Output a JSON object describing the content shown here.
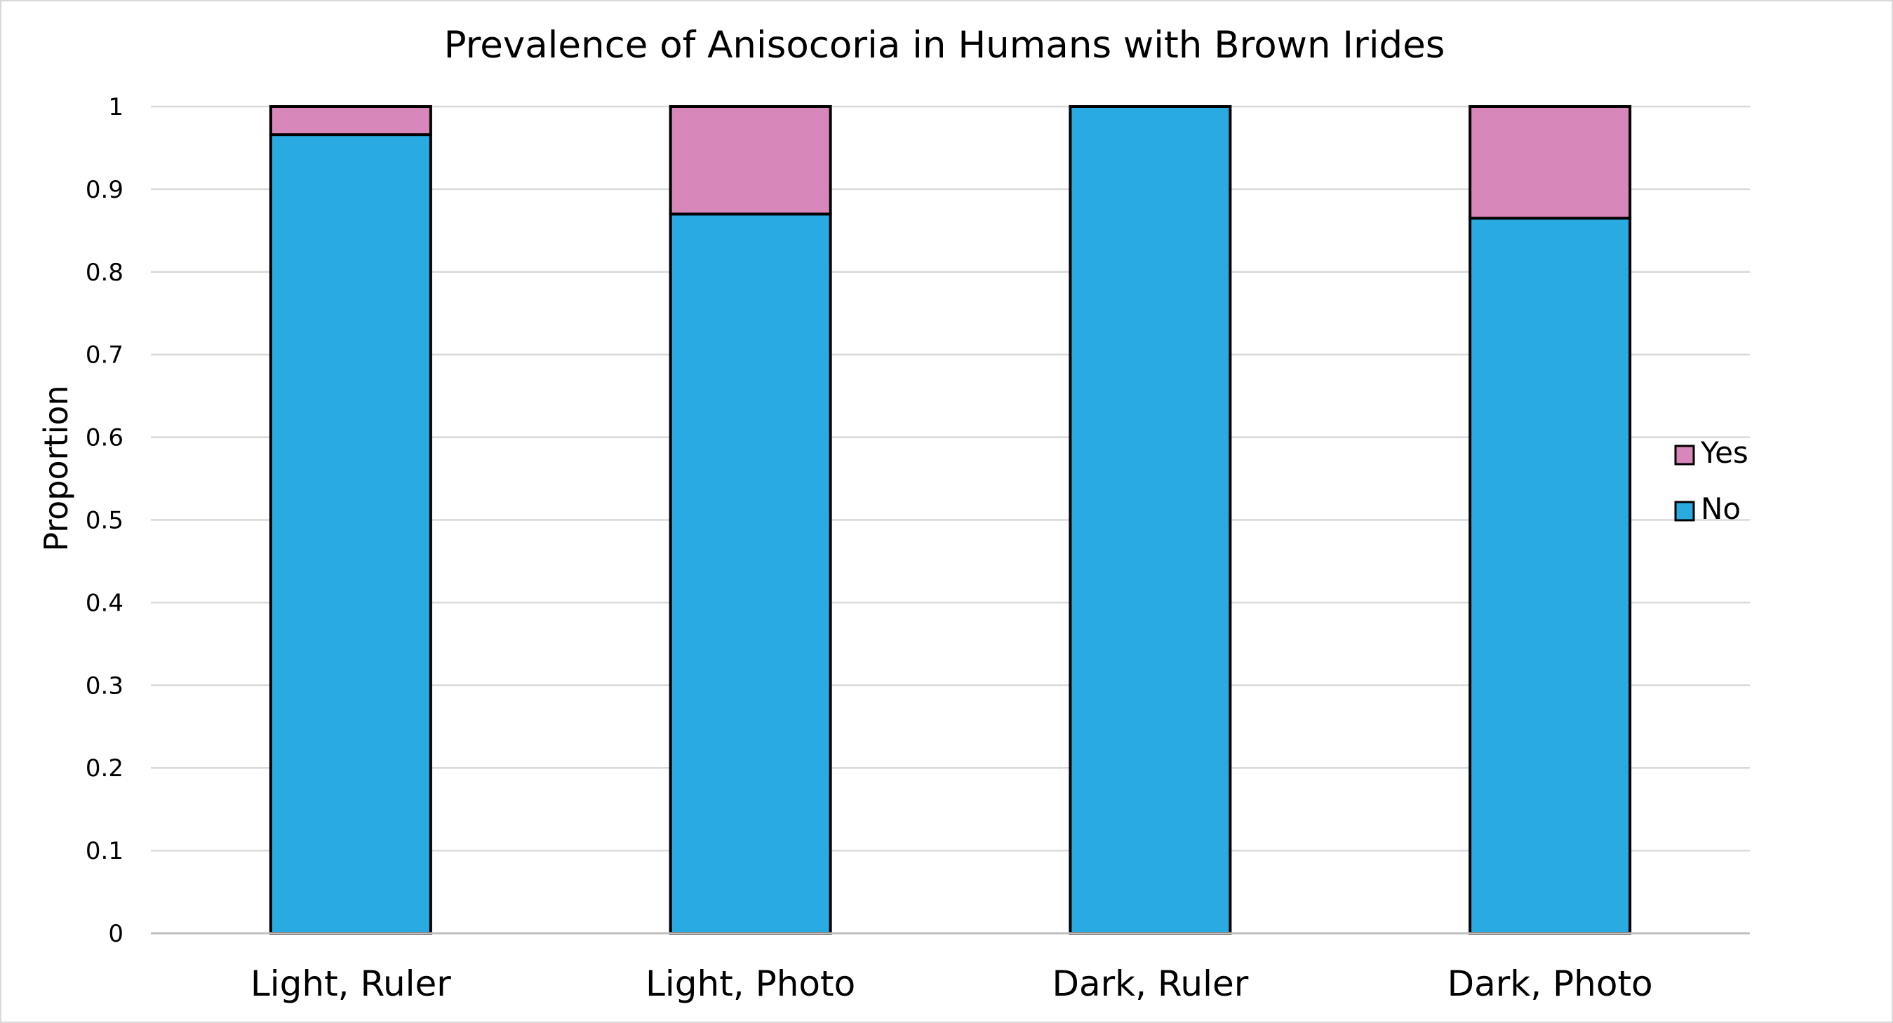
{
  "chart_data": {
    "type": "bar",
    "stacked": true,
    "title": "Prevalence of Anisocoria in Humans with Brown Irides",
    "xlabel": "",
    "ylabel": "Proportion",
    "ylim": [
      0,
      1
    ],
    "yticks": [
      "0",
      "0.1",
      "0.2",
      "0.3",
      "0.4",
      "0.5",
      "0.6",
      "0.7",
      "0.8",
      "0.9",
      "1"
    ],
    "grid": true,
    "legend_position": "right",
    "categories": [
      "Light, Ruler",
      "Light, Photo",
      "Dark, Ruler",
      "Dark, Photo"
    ],
    "series": [
      {
        "name": "No",
        "color": "#29abe2",
        "values": [
          0.966,
          0.87,
          1.0,
          0.865
        ]
      },
      {
        "name": "Yes",
        "color": "#d787b9",
        "values": [
          0.034,
          0.13,
          0.0,
          0.135
        ]
      }
    ],
    "legend_order": [
      "Yes",
      "No"
    ]
  }
}
